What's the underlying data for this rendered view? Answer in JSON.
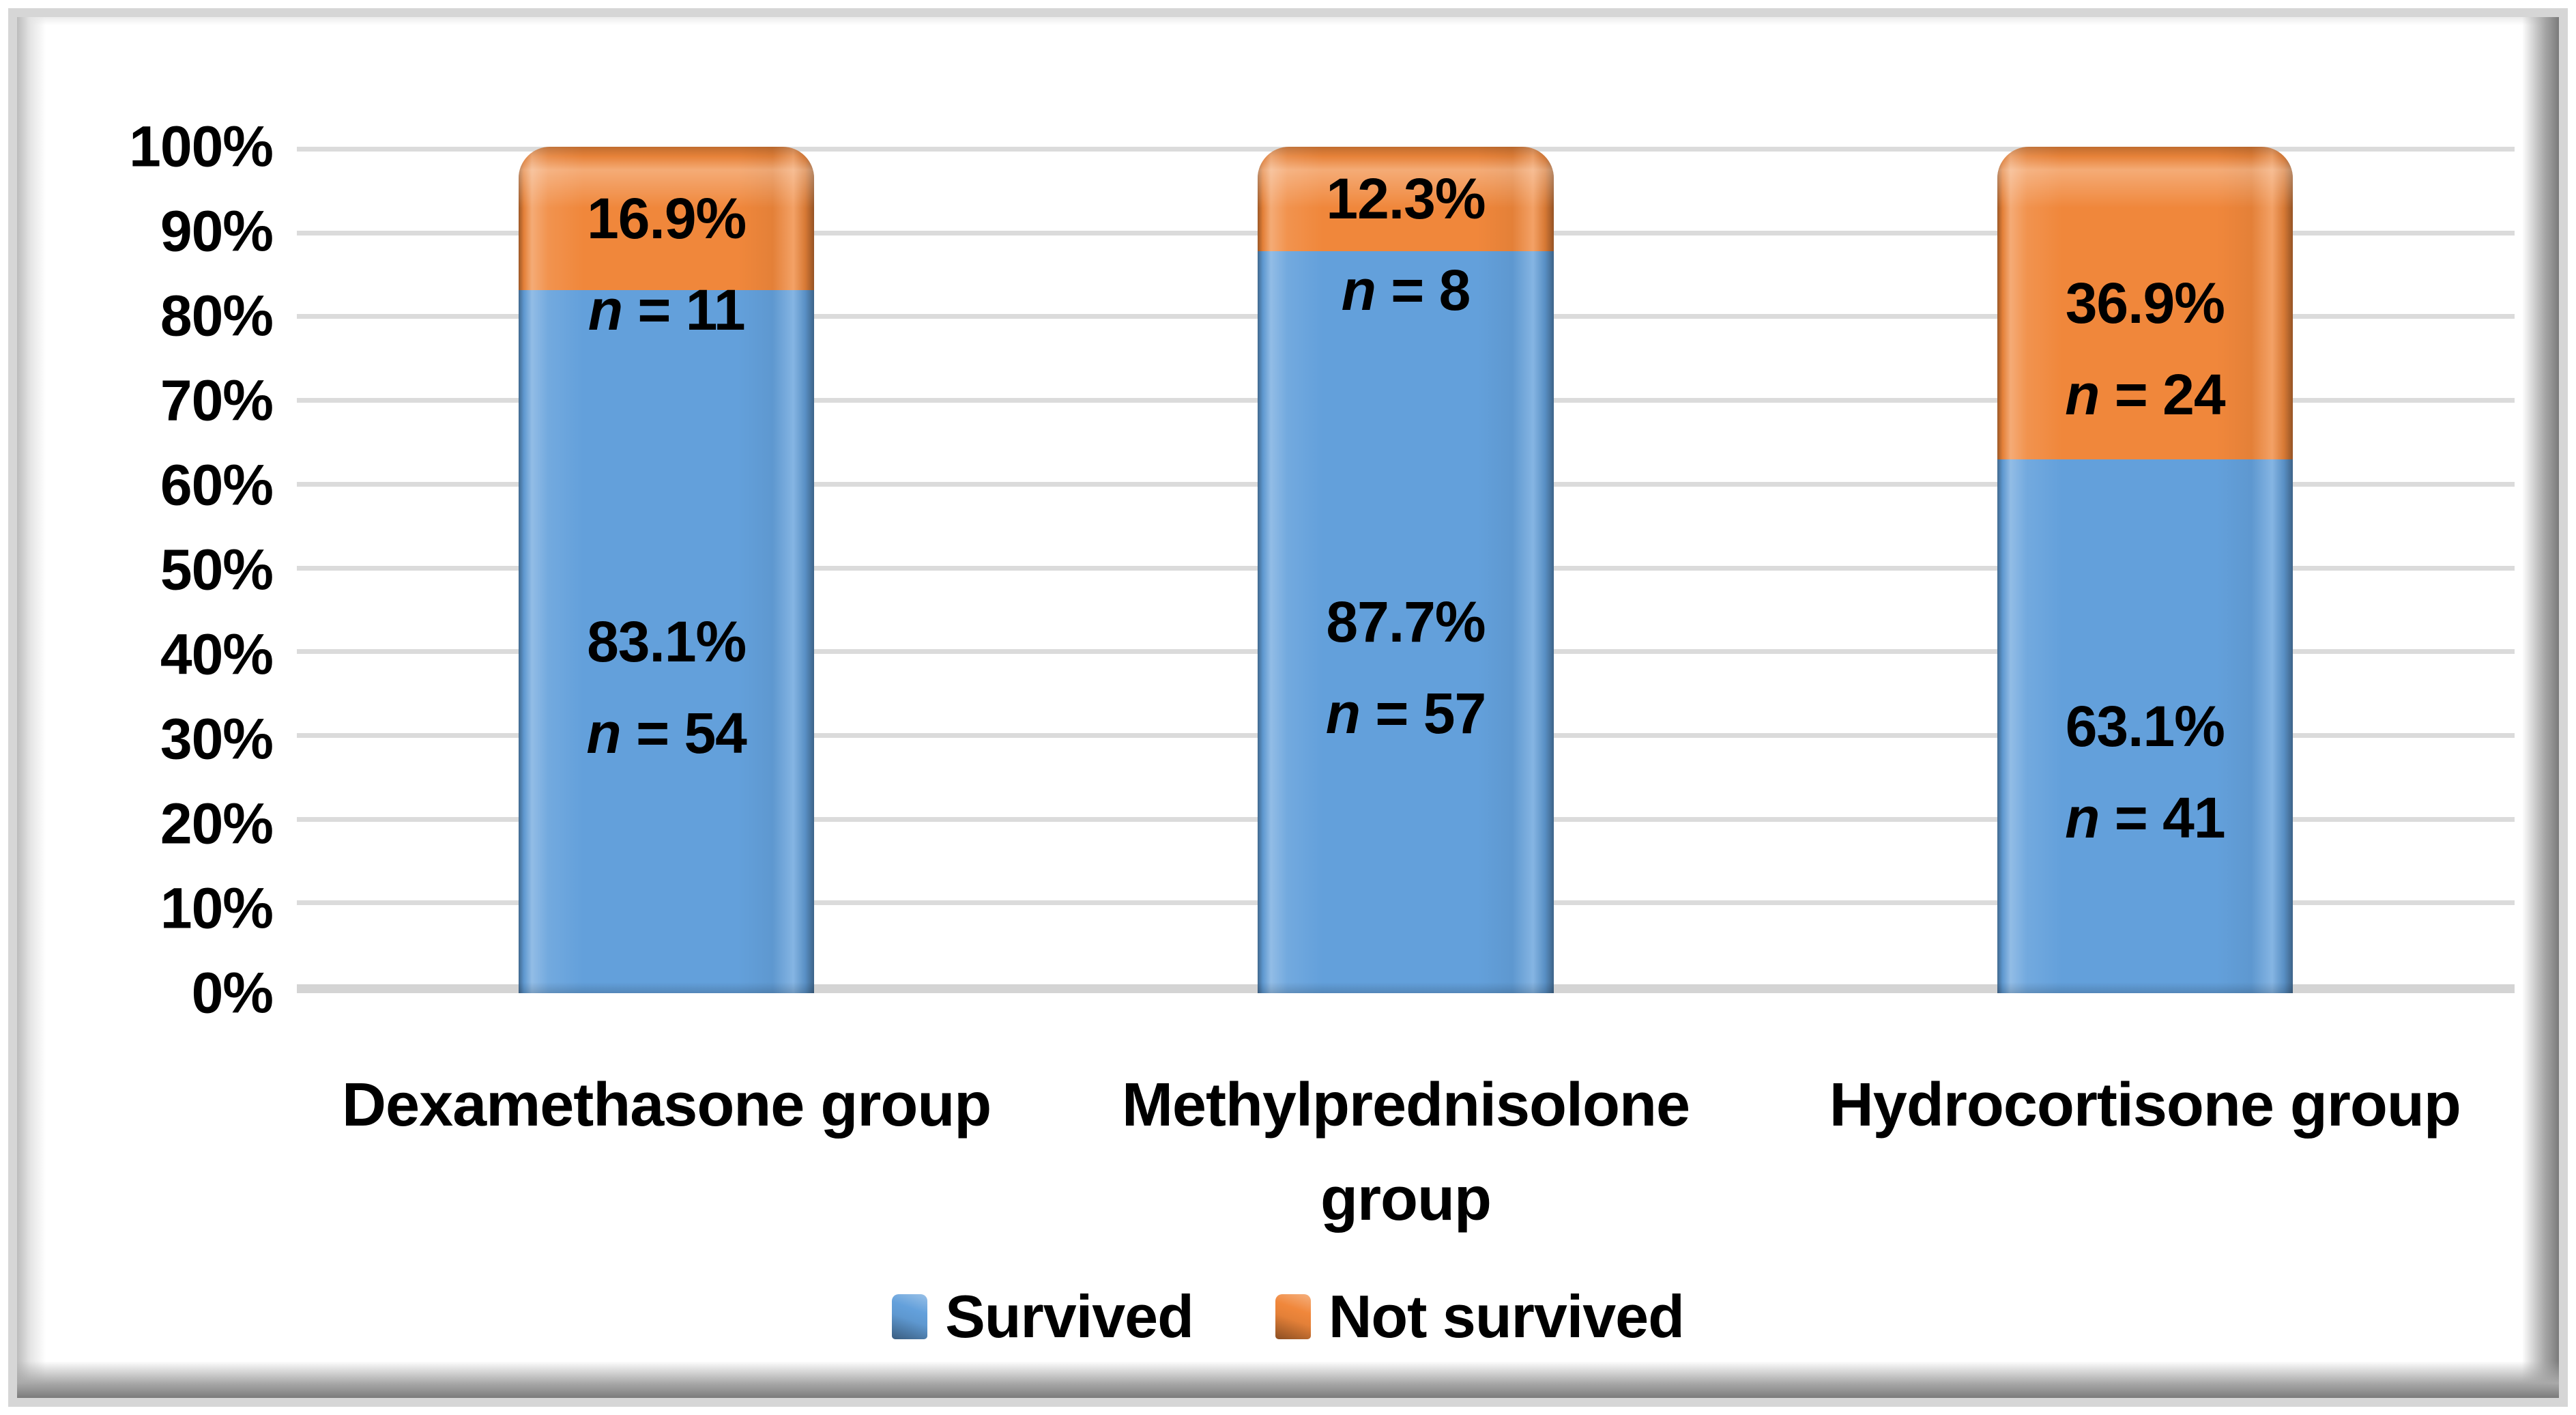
{
  "figure": {
    "description": "100% stacked column chart of survival by steroid treatment group",
    "background": "#FFFFFF"
  },
  "chart_data": {
    "type": "bar",
    "stacked": true,
    "percent_stacked": true,
    "title": "",
    "xlabel": "",
    "ylabel": "",
    "categories": [
      "Dexamethasone group",
      "Methylprednisolone group",
      "Hydrocortisone group"
    ],
    "series": [
      {
        "name": "Survived",
        "color": "#63A0DB",
        "values": [
          83.1,
          87.7,
          63.1
        ],
        "counts": [
          54,
          57,
          41
        ]
      },
      {
        "name": "Not survived",
        "color": "#F0873B",
        "values": [
          16.9,
          12.3,
          36.9
        ],
        "counts": [
          11,
          8,
          24
        ]
      }
    ],
    "value_labels": {
      "n_symbol": "n",
      "equals": " = ",
      "per_bar": [
        {
          "survived_pct": "83.1%",
          "survived_n": "54",
          "not_survived_pct": "16.9%",
          "not_survived_n": "11"
        },
        {
          "survived_pct": "87.7%",
          "survived_n": "57",
          "not_survived_pct": "12.3%",
          "not_survived_n": "8"
        },
        {
          "survived_pct": "63.1%",
          "survived_n": "41",
          "not_survived_pct": "36.9%",
          "not_survived_n": "24"
        }
      ]
    },
    "y_axis": {
      "min": 0,
      "max": 100,
      "step": 10,
      "ticks": [
        "100%",
        "90%",
        "80%",
        "70%",
        "60%",
        "50%",
        "40%",
        "30%",
        "20%",
        "10%",
        "0%"
      ]
    },
    "grid": true,
    "gridline_color": "#DBDBDB",
    "axis_line_color": "#D4D4D4",
    "legend_position": "bottom",
    "legend": {
      "entries": [
        {
          "label": "Survived",
          "color": "#63A0DB"
        },
        {
          "label": "Not survived",
          "color": "#F0873B"
        }
      ]
    }
  }
}
